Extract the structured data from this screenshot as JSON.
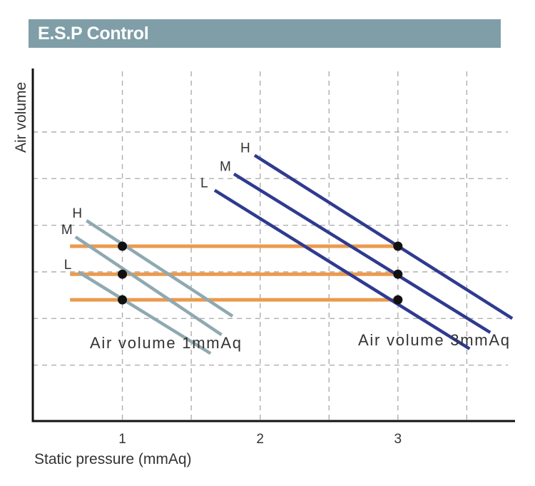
{
  "header": {
    "title": "E.S.P Control"
  },
  "chart_data": {
    "type": "line",
    "title": "E.S.P Control",
    "xlabel": "Static pressure (mmAq)",
    "ylabel": "Air volume",
    "x_ticks": [
      "1",
      "2",
      "3"
    ],
    "xlim": [
      0.35,
      3.85
    ],
    "ylim": [
      0,
      7.5
    ],
    "grid": true,
    "colors": {
      "curve_1mmAq": "#8fa9b1",
      "curve_3mmAq": "#2f3a8f",
      "level_line": "#eb9a4e",
      "points": "#111111",
      "title_bar": "#7f9ea8"
    },
    "curve_groups": [
      {
        "annotation": "Air volume 1mmAq",
        "series": [
          {
            "name": "H",
            "points": [
              [
                0.74,
                4.3
              ],
              [
                1.8,
                2.25
              ]
            ]
          },
          {
            "name": "M",
            "points": [
              [
                0.66,
                3.95
              ],
              [
                1.72,
                1.85
              ]
            ]
          },
          {
            "name": "L",
            "points": [
              [
                0.68,
                3.2
              ],
              [
                1.64,
                1.45
              ]
            ]
          }
        ]
      },
      {
        "annotation": "Air volume 3mmAq",
        "series": [
          {
            "name": "H",
            "points": [
              [
                1.96,
                5.7
              ],
              [
                3.83,
                2.2
              ]
            ]
          },
          {
            "name": "M",
            "points": [
              [
                1.81,
                5.3
              ],
              [
                3.67,
                1.9
              ]
            ]
          },
          {
            "name": "L",
            "points": [
              [
                1.67,
                4.95
              ],
              [
                3.52,
                1.55
              ]
            ]
          }
        ]
      }
    ],
    "level_lines": [
      {
        "y": 3.75,
        "x_range": [
          0.62,
          3.0
        ]
      },
      {
        "y": 3.15,
        "x_range": [
          0.62,
          3.0
        ]
      },
      {
        "y": 2.6,
        "x_range": [
          0.62,
          3.0
        ]
      }
    ],
    "operating_points": [
      {
        "x": 1,
        "y": 3.75
      },
      {
        "x": 1,
        "y": 3.15
      },
      {
        "x": 1,
        "y": 2.6
      },
      {
        "x": 3,
        "y": 3.75
      },
      {
        "x": 3,
        "y": 3.15
      },
      {
        "x": 3,
        "y": 2.6
      }
    ]
  }
}
